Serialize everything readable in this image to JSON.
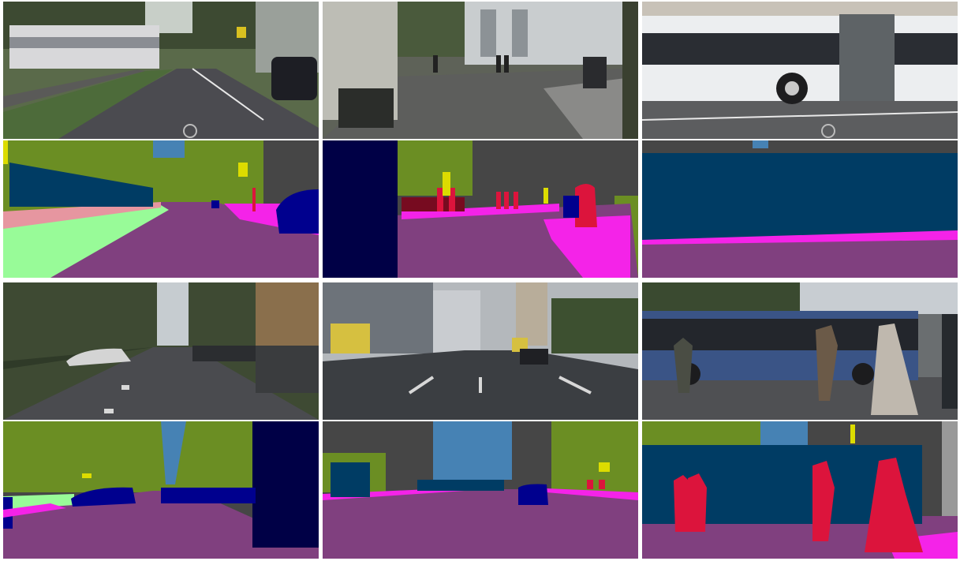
{
  "grid": {
    "columns": 3,
    "rows": 4,
    "pairs": [
      {
        "scene": "tram-avenue"
      },
      {
        "scene": "sidewalk-truck"
      },
      {
        "scene": "articulated-bus"
      },
      {
        "scene": "tree-lined-road"
      },
      {
        "scene": "multilane-boulevard"
      },
      {
        "scene": "bus-pedestrians"
      }
    ]
  },
  "palette": {
    "road": "#80407f",
    "sidewalk": "#f423e8",
    "vegetation": "#6b8e23",
    "terrain": "#98fb98",
    "sky": "#4682b4",
    "building": "#464646",
    "car": "#00008e",
    "truck": "#000046",
    "bus": "#003c64",
    "person": "#dc143c",
    "pole": "#999999",
    "traffic_sign": "#dcdc00",
    "rail_track": "#e696a0",
    "bicycle": "#770b20"
  }
}
